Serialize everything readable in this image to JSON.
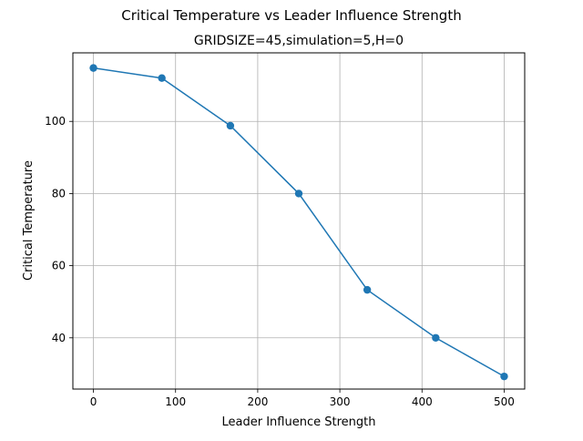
{
  "chart_data": {
    "type": "line",
    "suptitle": "Critical Temperature vs Leader Influence Strength",
    "title": "GRIDSIZE=45,simulation=5,H=0",
    "xlabel": "Leader Influence Strength",
    "ylabel": "Critical Temperature",
    "xlim": [
      -25,
      525
    ],
    "ylim": [
      25.8,
      119.0
    ],
    "xticks": [
      0,
      100,
      200,
      300,
      400,
      500
    ],
    "yticks": [
      40,
      60,
      80,
      100
    ],
    "grid": true,
    "series": [
      {
        "color": "#1f77b4",
        "marker": "circle",
        "x": [
          0,
          83.3,
          166.7,
          250,
          333.3,
          416.7,
          500
        ],
        "y": [
          114.8,
          112.0,
          98.8,
          80.0,
          53.3,
          40.0,
          29.3
        ]
      }
    ]
  }
}
